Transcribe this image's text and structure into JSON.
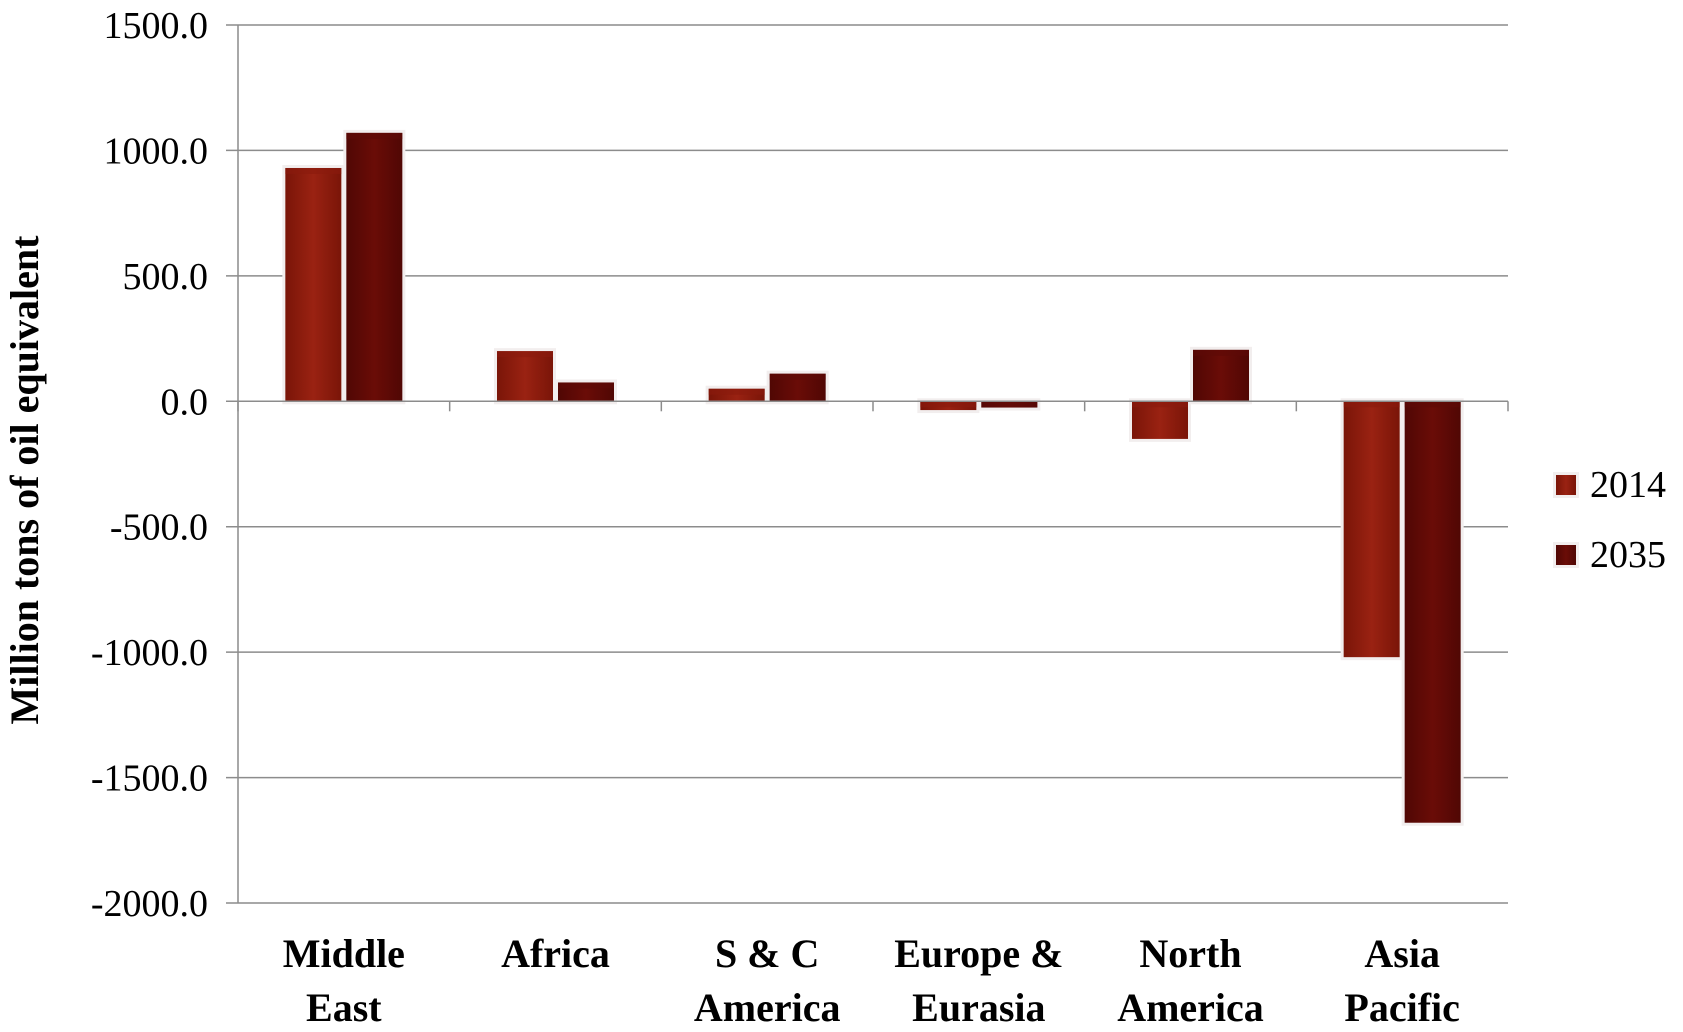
{
  "chart_data": {
    "type": "bar",
    "title": "",
    "xlabel": "",
    "ylabel": "Million tons of oil equivalent",
    "ylim": [
      -2000,
      1500
    ],
    "yticks": [
      1500,
      1000,
      500,
      0,
      -500,
      -1000,
      -1500,
      -2000
    ],
    "ytick_labels": [
      "1500.0",
      "1000.0",
      "500.0",
      "0.0",
      "-500.0",
      "-1000.0",
      "-1500.0",
      "-2000.0"
    ],
    "categories": [
      [
        "Middle",
        "East"
      ],
      [
        "Africa"
      ],
      [
        "S & C",
        "America"
      ],
      [
        "Europe &",
        "Eurasia"
      ],
      [
        "North",
        "America"
      ],
      [
        "Asia",
        "Pacific"
      ]
    ],
    "series": [
      {
        "name": "2014",
        "color": "#8b1a0e",
        "values": [
          930,
          200,
          50,
          -35,
          -150,
          -1020
        ]
      },
      {
        "name": "2035",
        "color": "#5e0a06",
        "values": [
          1070,
          75,
          110,
          -25,
          205,
          -1680
        ]
      }
    ],
    "grid": true,
    "legend_position": "right"
  }
}
